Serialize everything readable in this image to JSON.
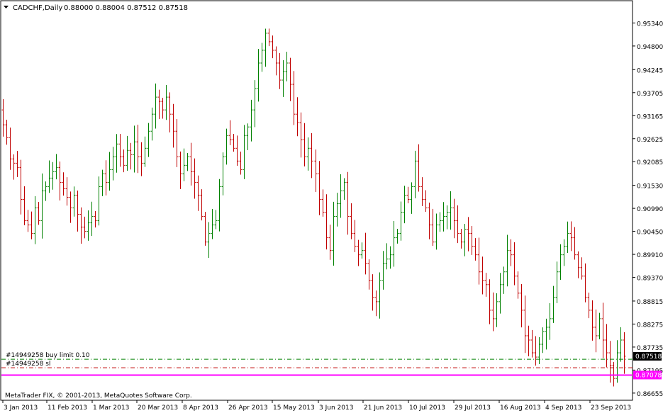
{
  "header": {
    "symbol": "CADCHF,Daily",
    "ohlc": "0.88000 0.88004 0.87512 0.87518"
  },
  "orders": {
    "buy_limit_label": "#14949258 buy limit 0.10",
    "sl_label": "#14949258 sl"
  },
  "footer": {
    "copyright": "MetaTrader FIX, © 2001-2013, MetaQuotes Software Corp."
  },
  "colors": {
    "bull": "#008000",
    "bear": "#c00000",
    "buy_limit_line": "#008000",
    "sl_line": "#c00000",
    "magenta_line": "#ff00ff",
    "bid_tag": "#000000",
    "magenta_tag": "#ff00ff"
  },
  "chart_data": {
    "type": "candlestick",
    "symbol": "CADCHF",
    "timeframe": "Daily",
    "y_ticks": [
      "0.95340",
      "0.94800",
      "0.94245",
      "0.93705",
      "0.93165",
      "0.92625",
      "0.92085",
      "0.91530",
      "0.90990",
      "0.90450",
      "0.89910",
      "0.89370",
      "0.88815",
      "0.88275",
      "0.87735",
      "0.87195",
      "0.86655"
    ],
    "x_labels": [
      "3 Jan 2013",
      "11 Feb 2013",
      "1 Mar 2013",
      "20 Mar 2013",
      "8 Apr 2013",
      "26 Apr 2013",
      "15 May 2013",
      "3 Jun 2013",
      "21 Jun 2013",
      "10 Jul 2013",
      "29 Jul 2013",
      "16 Aug 2013",
      "4 Sep 2013",
      "23 Sep 2013"
    ],
    "ylim": [
      0.8657,
      0.9558
    ],
    "price_tags": {
      "bid": "0.87518",
      "magenta": "0.87078"
    },
    "levels": {
      "buy_limit": 0.8745,
      "stop_loss": 0.8725,
      "magenta": 0.87078
    },
    "close": [
      0.9295,
      0.9265,
      0.9215,
      0.9205,
      0.9195,
      0.912,
      0.907,
      0.906,
      0.904,
      0.91,
      0.907,
      0.914,
      0.915,
      0.917,
      0.9185,
      0.9195,
      0.916,
      0.9145,
      0.9125,
      0.91,
      0.913,
      0.9085,
      0.9055,
      0.9045,
      0.9065,
      0.908,
      0.907,
      0.915,
      0.918,
      0.916,
      0.919,
      0.922,
      0.925,
      0.922,
      0.92,
      0.9235,
      0.9225,
      0.9255,
      0.922,
      0.9205,
      0.924,
      0.928,
      0.932,
      0.936,
      0.935,
      0.933,
      0.936,
      0.932,
      0.928,
      0.922,
      0.918,
      0.92,
      0.922,
      0.9185,
      0.916,
      0.913,
      0.908,
      0.902,
      0.904,
      0.906,
      0.907,
      0.915,
      0.922,
      0.927,
      0.926,
      0.924,
      0.921,
      0.919,
      0.927,
      0.929,
      0.933,
      0.938,
      0.944,
      0.947,
      0.951,
      0.949,
      0.947,
      0.944,
      0.94,
      0.942,
      0.944,
      0.939,
      0.932,
      0.93,
      0.926,
      0.922,
      0.924,
      0.921,
      0.918,
      0.912,
      0.909,
      0.903,
      0.9,
      0.908,
      0.911,
      0.914,
      0.916,
      0.908,
      0.904,
      0.901,
      0.899,
      0.9,
      0.897,
      0.893,
      0.889,
      0.888,
      0.893,
      0.897,
      0.898,
      0.899,
      0.903,
      0.904,
      0.909,
      0.913,
      0.912,
      0.915,
      0.921,
      0.915,
      0.912,
      0.91,
      0.906,
      0.902,
      0.906,
      0.907,
      0.908,
      0.909,
      0.91,
      0.907,
      0.904,
      0.902,
      0.905,
      0.904,
      0.901,
      0.899,
      0.895,
      0.893,
      0.892,
      0.886,
      0.884,
      0.888,
      0.892,
      0.895,
      0.9,
      0.899,
      0.894,
      0.89,
      0.886,
      0.88,
      0.879,
      0.876,
      0.875,
      0.878,
      0.881,
      0.882,
      0.884,
      0.889,
      0.895,
      0.899,
      0.901,
      0.904,
      0.903,
      0.899,
      0.896,
      0.894,
      0.889,
      0.886,
      0.882,
      0.88,
      0.884,
      0.879,
      0.876,
      0.873,
      0.87,
      0.876,
      0.879,
      0.8752
    ]
  }
}
